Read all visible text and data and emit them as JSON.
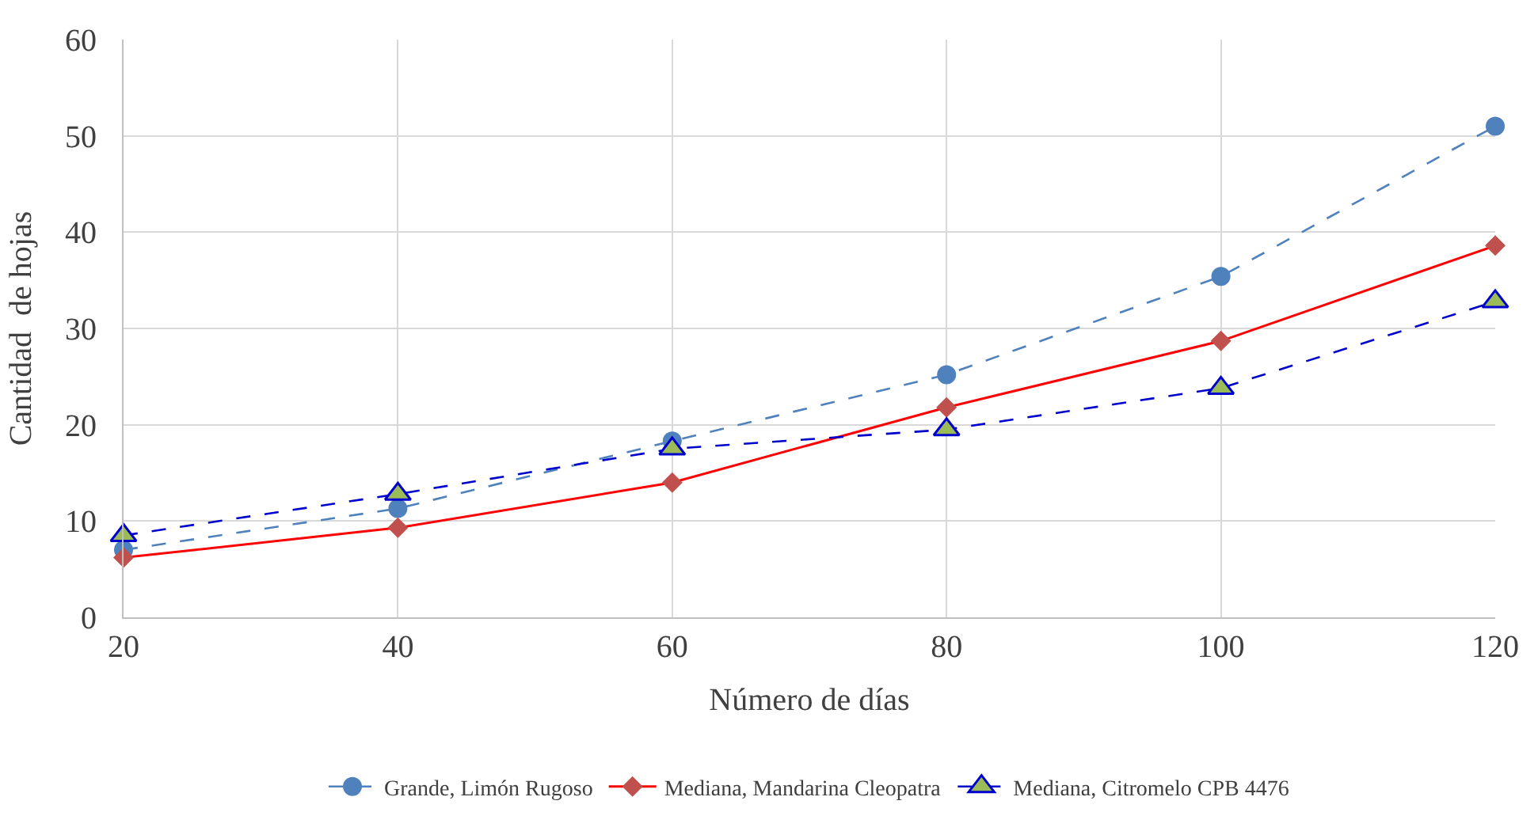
{
  "chart_data": {
    "type": "line",
    "xlabel": "Número de días",
    "ylabel": "Cantidad  de hojas",
    "x": [
      20,
      40,
      60,
      80,
      100,
      120
    ],
    "xlim": [
      20,
      120
    ],
    "xticks": [
      20,
      40,
      60,
      80,
      100,
      120
    ],
    "ylim": [
      0,
      60
    ],
    "yticks": [
      0,
      10,
      20,
      30,
      40,
      50,
      60
    ],
    "grid": true,
    "legend": "bottom",
    "series": [
      {
        "name": "Grande, Limón Rugoso",
        "color": "#4f81bd",
        "marker": "circle",
        "line_style": "dashed",
        "values": [
          7.0,
          11.3,
          18.3,
          25.2,
          35.4,
          51.0
        ]
      },
      {
        "name": "Mediana, Mandarina Cleopatra",
        "color": "#ff0000",
        "marker": "diamond",
        "line_style": "solid",
        "values": [
          6.2,
          9.3,
          14.0,
          21.8,
          28.7,
          38.6
        ]
      },
      {
        "name": "Mediana, Citromelo CPB 4476",
        "color": "#0000cc",
        "marker": "triangle",
        "line_style": "dashed",
        "values": [
          8.5,
          12.8,
          17.5,
          19.5,
          23.8,
          32.8
        ]
      }
    ]
  }
}
